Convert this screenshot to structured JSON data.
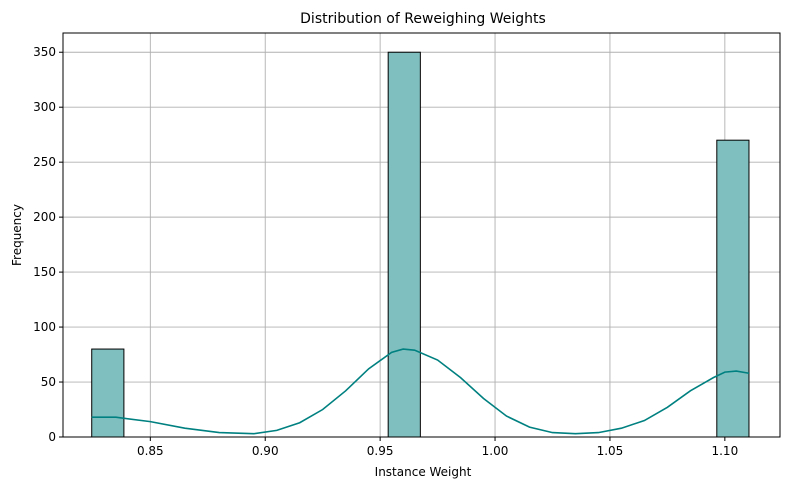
{
  "chart_data": {
    "type": "bar",
    "title": "Distribution of Reweighing Weights",
    "xlabel": "Instance Weight",
    "ylabel": "Frequency",
    "xlim": [
      0.812,
      1.124
    ],
    "ylim": [
      0,
      367.5
    ],
    "x_ticks": [
      0.85,
      0.9,
      0.95,
      1.0,
      1.05,
      1.1
    ],
    "x_tick_labels": [
      "0.85",
      "0.90",
      "0.95",
      "1.00",
      "1.05",
      "1.10"
    ],
    "y_ticks": [
      0,
      50,
      100,
      150,
      200,
      250,
      300,
      350
    ],
    "y_tick_labels": [
      "0",
      "50",
      "100",
      "150",
      "200",
      "250",
      "300",
      "350"
    ],
    "grid": true,
    "bar_color": "#80bfbf",
    "bar_edge_color": "#000000",
    "kde_color": "#008080",
    "bins": [
      {
        "x0": 0.8245,
        "x1": 0.8385,
        "value": 80
      },
      {
        "x0": 0.9535,
        "x1": 0.9675,
        "value": 350
      },
      {
        "x0": 1.0965,
        "x1": 1.1105,
        "value": 270
      }
    ],
    "kde": {
      "x": [
        0.8245,
        0.835,
        0.85,
        0.865,
        0.88,
        0.895,
        0.905,
        0.915,
        0.925,
        0.935,
        0.945,
        0.955,
        0.96,
        0.965,
        0.975,
        0.985,
        0.995,
        1.005,
        1.015,
        1.025,
        1.035,
        1.045,
        1.055,
        1.065,
        1.075,
        1.085,
        1.095,
        1.1,
        1.105,
        1.1105
      ],
      "y": [
        18,
        18,
        14,
        8,
        4,
        3,
        6,
        13,
        25,
        42,
        62,
        77,
        80,
        79,
        70,
        54,
        35,
        19,
        9,
        4,
        3,
        4,
        8,
        15,
        27,
        42,
        54,
        59,
        60,
        58
      ]
    }
  }
}
